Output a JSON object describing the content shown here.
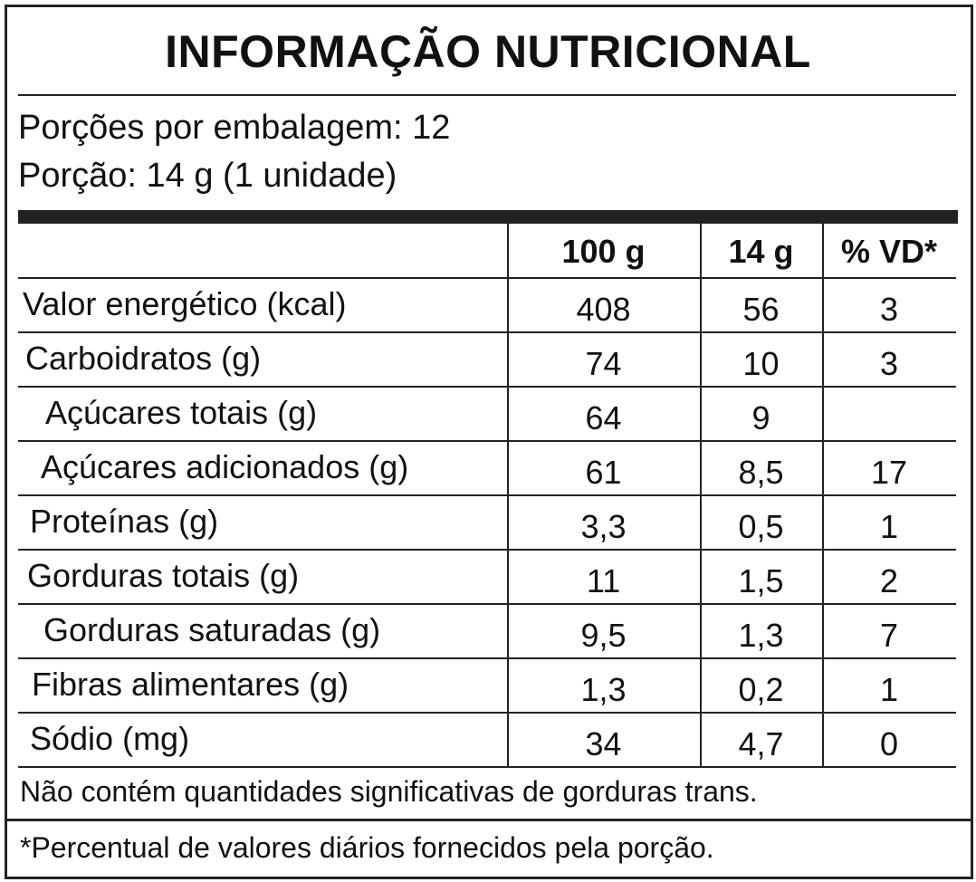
{
  "title": "INFORMAÇÃO NUTRICIONAL",
  "servings": [
    "Porções por embalagem: 12",
    "Porção: 14 g (1 unidade)"
  ],
  "table": {
    "header": [
      "100 g",
      "14 g",
      "% VD*"
    ],
    "rows": [
      [
        "Valor energético (kcal)",
        "408",
        "56",
        "3"
      ],
      [
        "Carboidratos (g)",
        "74",
        "10",
        "3"
      ],
      [
        "Açúcares totais (g)",
        "64",
        "9",
        null
      ],
      [
        "Açúcares adicionados (g)",
        "61",
        "8,5",
        "17"
      ],
      [
        "Proteínas (g)",
        "3,3",
        "0,5",
        "1"
      ],
      [
        "Gorduras totais (g)",
        "11",
        "1,5",
        "2"
      ],
      [
        "Gorduras saturadas (g)",
        "9,5",
        "1,3",
        "7"
      ],
      [
        "Fibras alimentares (g)",
        "1,3",
        "0,2",
        "1"
      ],
      [
        "Sódio (mg)",
        "34",
        "4,7",
        "0"
      ]
    ]
  },
  "notes": [
    "Não contém quantidades significativas de gorduras trans.",
    "*Percentual de valores diários fornecidos pela porção."
  ]
}
